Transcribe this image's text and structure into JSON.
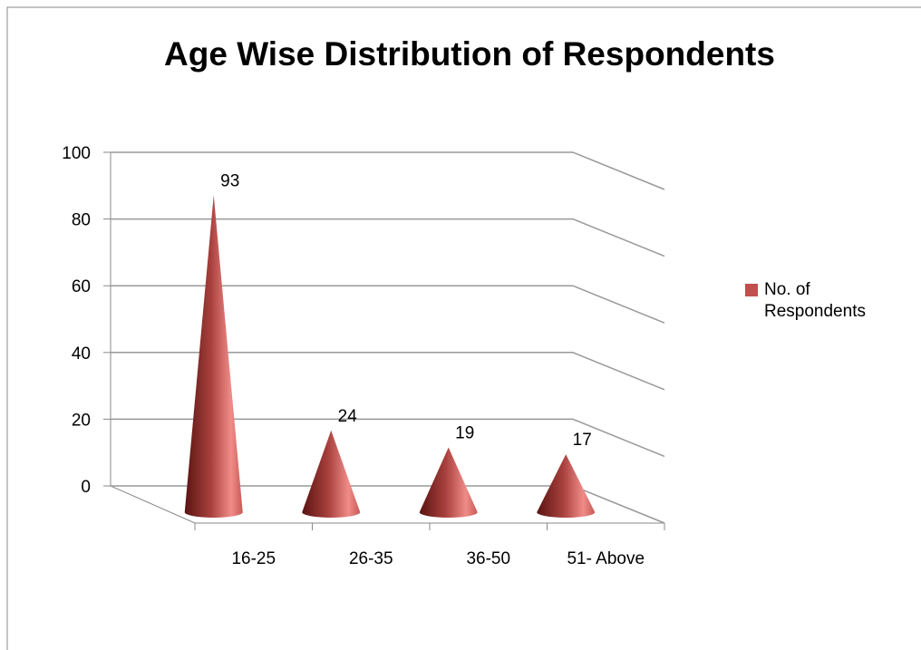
{
  "chart_data": {
    "type": "cone",
    "title": "Age Wise Distribution  of Respondents",
    "categories": [
      "16-25",
      "26-35",
      "36-50",
      "51- Above"
    ],
    "series": [
      {
        "name": "No. of Respondents",
        "color": "#c0504d",
        "values": [
          93,
          24,
          19,
          17
        ]
      }
    ],
    "ylim": [
      0,
      100
    ],
    "yticks": [
      0,
      20,
      40,
      60,
      80,
      100
    ],
    "grid": true,
    "legend": "right"
  }
}
